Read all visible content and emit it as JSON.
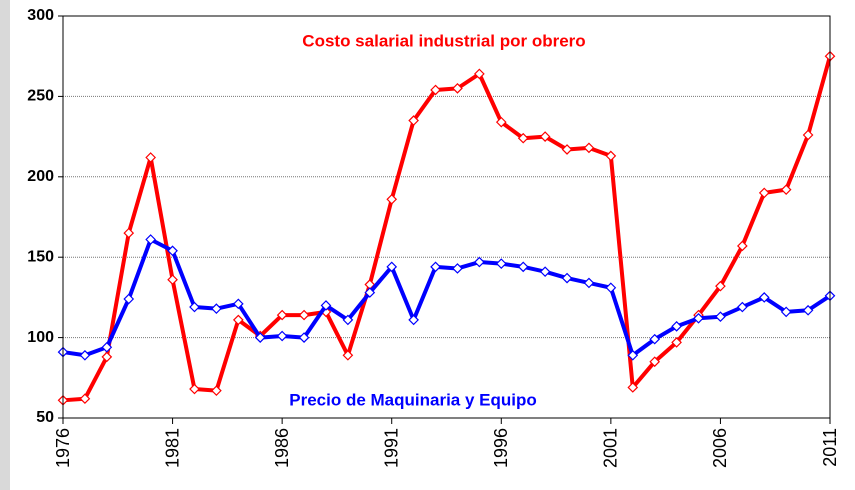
{
  "chart_data": {
    "type": "line",
    "x": [
      1976,
      1977,
      1978,
      1979,
      1980,
      1981,
      1982,
      1983,
      1984,
      1985,
      1986,
      1987,
      1988,
      1989,
      1990,
      1991,
      1992,
      1993,
      1994,
      1995,
      1996,
      1997,
      1998,
      1999,
      2000,
      2001,
      2002,
      2003,
      2004,
      2005,
      2006,
      2007,
      2008,
      2009,
      2010,
      2011
    ],
    "series": [
      {
        "name": "Costo salarial industrial por obrero",
        "color": "#ff0000",
        "values": [
          61,
          62,
          88,
          165,
          212,
          136,
          68,
          67,
          111,
          101,
          114,
          114,
          116,
          89,
          133,
          186,
          235,
          254,
          255,
          264,
          234,
          224,
          225,
          217,
          218,
          213,
          69,
          85,
          97,
          114,
          132,
          157,
          190,
          192,
          226,
          275
        ]
      },
      {
        "name": "Precio de Maquinaria y Equipo",
        "color": "#0000ff",
        "values": [
          91,
          89,
          94,
          124,
          161,
          154,
          119,
          118,
          121,
          100,
          101,
          100,
          120,
          111,
          128,
          144,
          111,
          144,
          143,
          147,
          146,
          144,
          141,
          137,
          134,
          131,
          89,
          99,
          107,
          112,
          113,
          119,
          125,
          116,
          117,
          126
        ]
      }
    ],
    "xlim": [
      1976,
      2011
    ],
    "xticks": [
      1976,
      1981,
      1986,
      1991,
      1996,
      2001,
      2006,
      2011
    ],
    "ylim": [
      50,
      300
    ],
    "yticks": [
      50,
      100,
      150,
      200,
      250,
      300
    ],
    "grid": true
  }
}
